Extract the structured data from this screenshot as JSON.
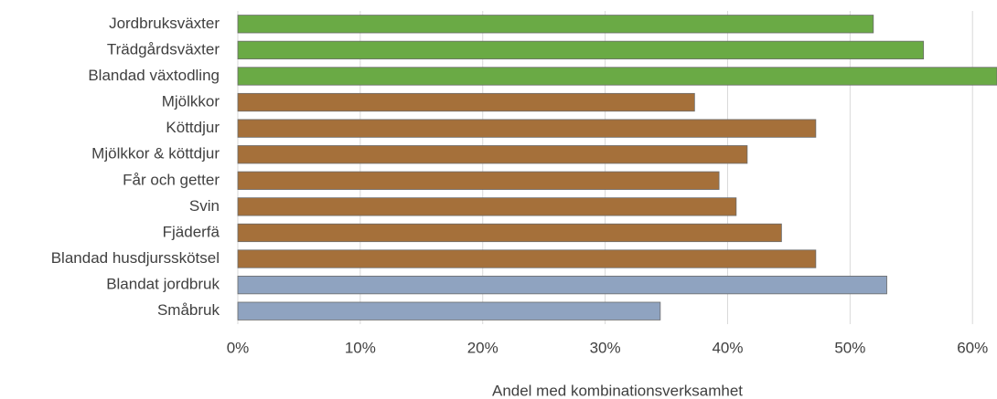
{
  "chart_data": {
    "type": "barh",
    "xlabel": "Andel med kombinationsverksamhet",
    "categories": [
      "Jordbruksväxter",
      "Trädgårdsväxter",
      "Blandad växtodling",
      "Mjölkkor",
      "Köttdjur",
      "Mjölkkor & köttdjur",
      "Får och getter",
      "Svin",
      "Fjäderfä",
      "Blandad husdjursskötsel",
      "Blandat jordbruk",
      "Småbruk"
    ],
    "values": [
      51.9,
      56.0,
      62,
      37.3,
      47.2,
      41.6,
      39.3,
      40.7,
      44.4,
      47.2,
      53.0,
      34.5
    ],
    "colors": [
      "#6aaa45",
      "#6aaa45",
      "#6aaa45",
      "#a5703a",
      "#a5703a",
      "#a5703a",
      "#a5703a",
      "#a5703a",
      "#a5703a",
      "#a5703a",
      "#8fa3c0",
      "#8fa3c0"
    ],
    "xlim": [
      0,
      62
    ],
    "xticks": [
      {
        "value": 0,
        "label": "0%"
      },
      {
        "value": 10,
        "label": "10%"
      },
      {
        "value": 20,
        "label": "20%"
      },
      {
        "value": 30,
        "label": "30%"
      },
      {
        "value": 40,
        "label": "40%"
      },
      {
        "value": 50,
        "label": "50%"
      },
      {
        "value": 60,
        "label": "60%"
      }
    ],
    "grid": true
  }
}
